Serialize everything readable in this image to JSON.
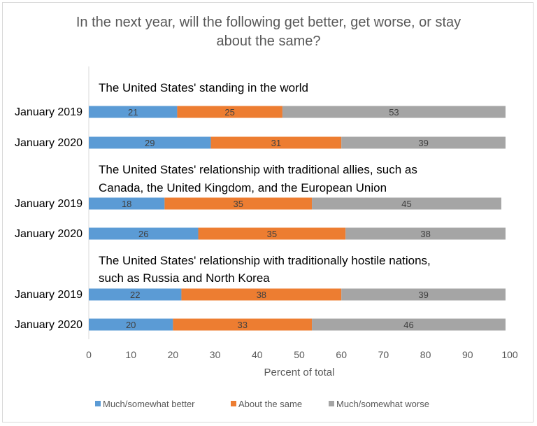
{
  "chart_data": {
    "type": "bar",
    "orientation": "horizontal",
    "stacked": true,
    "title": "In the next year, will the following get better, get worse, or stay about the same?",
    "title_lines": [
      "In the next year, will the following get better, get worse, or stay",
      "about the same?"
    ],
    "xlabel": "Percent of total",
    "xlim": [
      0,
      100
    ],
    "xticks": [
      0,
      10,
      20,
      30,
      40,
      50,
      60,
      70,
      80,
      90,
      100
    ],
    "grid": false,
    "legend_position": "bottom",
    "series": [
      {
        "name": "Much/somewhat better",
        "color": "#5b9bd5"
      },
      {
        "name": "About the same",
        "color": "#ed7d31"
      },
      {
        "name": "Much/somewhat worse",
        "color": "#a5a5a5"
      }
    ],
    "groups": [
      {
        "label_lines": [
          "The United States' standing in the world"
        ],
        "rows": [
          {
            "category": "January 2019",
            "values": [
              21,
              25,
              53
            ]
          },
          {
            "category": "January 2020",
            "values": [
              29,
              31,
              39
            ]
          }
        ]
      },
      {
        "label_lines": [
          "The United States' relationship with traditional allies, such as",
          "Canada, the United Kingdom, and the European Union"
        ],
        "rows": [
          {
            "category": "January 2019",
            "values": [
              18,
              35,
              45
            ]
          },
          {
            "category": "January 2020",
            "values": [
              26,
              35,
              38
            ]
          }
        ]
      },
      {
        "label_lines": [
          "The United States' relationship with traditionally hostile nations,",
          "such as Russia and North Korea"
        ],
        "rows": [
          {
            "category": "January 2019",
            "values": [
              22,
              38,
              39
            ]
          },
          {
            "category": "January 2020",
            "values": [
              20,
              33,
              46
            ]
          }
        ]
      }
    ]
  }
}
